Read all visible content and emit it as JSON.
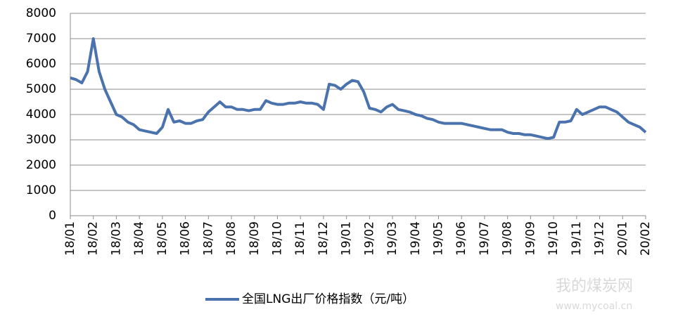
{
  "chart_data": {
    "type": "line",
    "categories": [
      "18/01",
      null,
      null,
      null,
      "18/02",
      null,
      null,
      null,
      "18/03",
      null,
      null,
      null,
      "18/04",
      null,
      null,
      null,
      "18/05",
      null,
      null,
      null,
      "18/06",
      null,
      null,
      null,
      "18/07",
      null,
      null,
      null,
      "18/08",
      null,
      null,
      null,
      "18/09",
      null,
      null,
      null,
      "18/10",
      null,
      null,
      null,
      "18/11",
      null,
      null,
      null,
      "18/12",
      null,
      null,
      null,
      "19/01",
      null,
      null,
      null,
      "19/02",
      null,
      null,
      null,
      "19/03",
      null,
      null,
      null,
      "19/04",
      null,
      null,
      null,
      "19/05",
      null,
      null,
      null,
      "19/06",
      null,
      null,
      null,
      "19/07",
      null,
      null,
      null,
      "19/08",
      null,
      null,
      null,
      "19/09",
      null,
      null,
      null,
      "19/10",
      null,
      null,
      null,
      "19/11",
      null,
      null,
      null,
      "19/12",
      null,
      null,
      null,
      "20/01",
      null,
      null,
      null,
      "20/02"
    ],
    "series": [
      {
        "name": "全国LNG出厂价格指数（元/吨）",
        "color": "#4a72ac",
        "values": [
          5450,
          5380,
          5250,
          5700,
          7000,
          5700,
          5000,
          4500,
          4000,
          3900,
          3700,
          3600,
          3400,
          3350,
          3300,
          3250,
          3500,
          4200,
          3700,
          3750,
          3650,
          3650,
          3750,
          3800,
          4100,
          4300,
          4500,
          4300,
          4300,
          4200,
          4200,
          4150,
          4200,
          4200,
          4550,
          4450,
          4400,
          4400,
          4450,
          4450,
          4500,
          4450,
          4450,
          4400,
          4200,
          5200,
          5150,
          5000,
          5200,
          5350,
          5300,
          4900,
          4250,
          4200,
          4100,
          4300,
          4400,
          4200,
          4150,
          4100,
          4000,
          3950,
          3850,
          3800,
          3700,
          3650,
          3650,
          3650,
          3650,
          3600,
          3550,
          3500,
          3450,
          3400,
          3400,
          3400,
          3300,
          3250,
          3250,
          3200,
          3200,
          3150,
          3100,
          3050,
          3100,
          3700,
          3700,
          3750,
          4200,
          4000,
          4100,
          4200,
          4300,
          4300,
          4200,
          4100,
          3900,
          3700,
          3600,
          3500,
          3300
        ]
      }
    ],
    "ylim": [
      0,
      8000
    ],
    "yticks": [
      0,
      1000,
      2000,
      3000,
      4000,
      5000,
      6000,
      7000,
      8000
    ],
    "grid": true,
    "legend": "bottom",
    "watermark": {
      "title": "我的煤炭网",
      "url": "www.mycoal.cn"
    }
  }
}
